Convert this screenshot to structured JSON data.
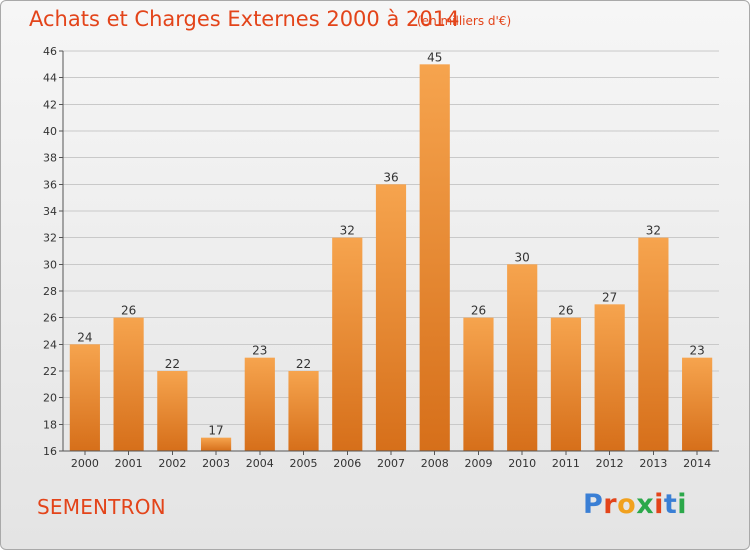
{
  "header": {
    "title": "Achats et Charges Externes 2000 à 2014",
    "subtitle": "(en milliers d'€)"
  },
  "footer": {
    "commune": "SEMENTRON",
    "logo_text": "Proxiti",
    "logo_colors": [
      "#3a7fd5",
      "#e3441a",
      "#f1a11e",
      "#2ba84a",
      "#e3441a",
      "#3a7fd5",
      "#2ba84a"
    ]
  },
  "chart_data": {
    "type": "bar",
    "categories": [
      "2000",
      "2001",
      "2002",
      "2003",
      "2004",
      "2005",
      "2006",
      "2007",
      "2008",
      "2009",
      "2010",
      "2011",
      "2012",
      "2013",
      "2014"
    ],
    "values": [
      24,
      26,
      22,
      17,
      23,
      22,
      32,
      36,
      45,
      26,
      30,
      26,
      27,
      32,
      23
    ],
    "ylim": [
      16,
      46
    ],
    "yticks": [
      16,
      18,
      20,
      22,
      24,
      26,
      28,
      30,
      32,
      34,
      36,
      38,
      40,
      42,
      44,
      46
    ],
    "grid": true,
    "bar_color_top": "#f6a44e",
    "bar_color_bottom": "#d66f1a",
    "axis_color": "#555555"
  }
}
